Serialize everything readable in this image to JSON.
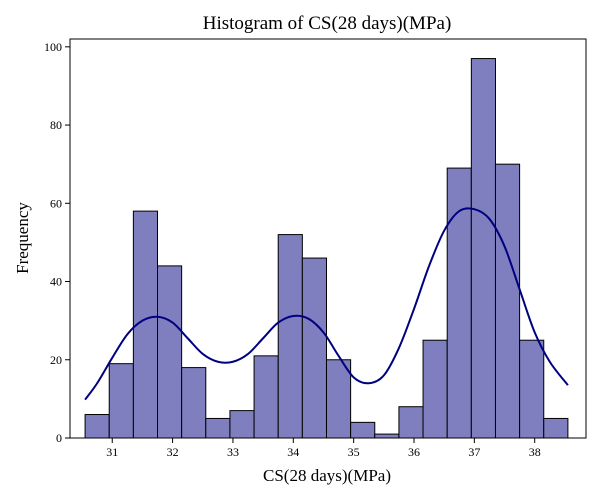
{
  "chart_data": {
    "type": "bar",
    "title": "Histogram of CS(28 days)(MPa)",
    "xlabel": "CS(28 days)(MPa)",
    "ylabel": "Frequency",
    "xlim": [
      30.3,
      38.85
    ],
    "ylim": [
      0,
      102
    ],
    "xticks": [
      31,
      32,
      33,
      34,
      35,
      36,
      37,
      38
    ],
    "yticks": [
      0,
      20,
      40,
      60,
      80,
      100
    ],
    "bin_edges": [
      30.55,
      30.95,
      31.35,
      31.75,
      32.15,
      32.55,
      32.95,
      33.35,
      33.75,
      34.15,
      34.55,
      34.95,
      35.35,
      35.75,
      36.15,
      36.55,
      36.95,
      37.35,
      37.75,
      38.15,
      38.55
    ],
    "counts": [
      6,
      19,
      58,
      44,
      18,
      5,
      7,
      21,
      52,
      46,
      20,
      4,
      1,
      8,
      25,
      69,
      97,
      70,
      25,
      5
    ],
    "kde": {
      "x": [
        30.55,
        30.75,
        31.0,
        31.25,
        31.5,
        31.75,
        32.0,
        32.25,
        32.5,
        32.75,
        33.0,
        33.25,
        33.5,
        33.75,
        34.0,
        34.25,
        34.5,
        34.75,
        35.0,
        35.25,
        35.5,
        35.75,
        36.0,
        36.25,
        36.5,
        36.75,
        37.0,
        37.25,
        37.5,
        37.75,
        38.0,
        38.25,
        38.55
      ],
      "y": [
        9.8,
        14,
        20.5,
        26.5,
        30,
        31,
        29.5,
        25.5,
        21.5,
        19.5,
        19.5,
        21.5,
        25.5,
        29.5,
        31.2,
        30.5,
        27,
        21,
        15.5,
        14,
        16,
        23,
        33,
        44,
        53,
        58,
        58.5,
        56,
        49,
        38,
        27,
        19.5,
        13.5
      ]
    },
    "bar_color": "#7f7fbf",
    "kde_color": "#000080",
    "grid": false
  }
}
